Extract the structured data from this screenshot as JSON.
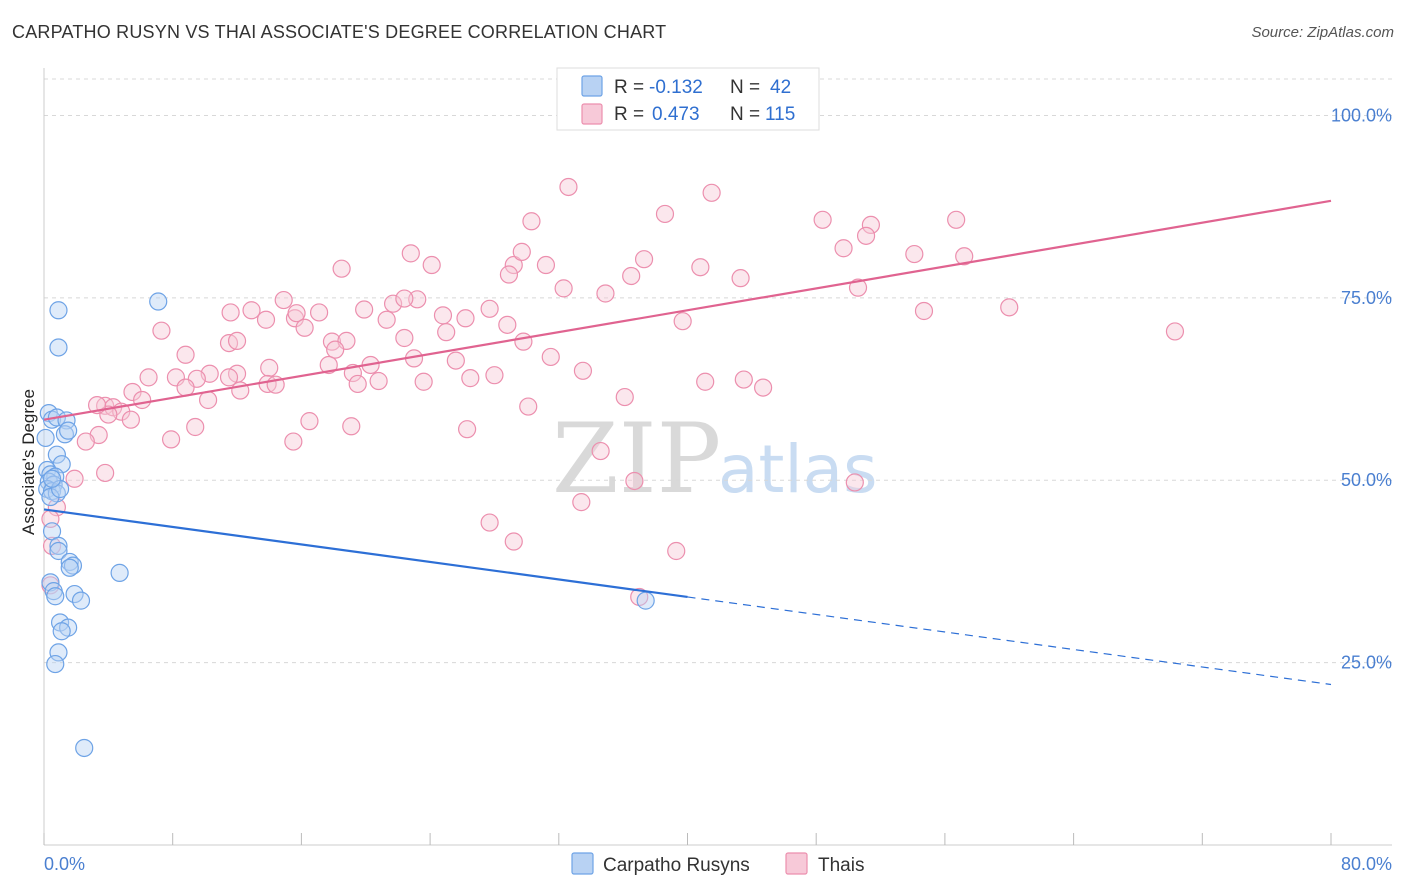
{
  "title": "CARPATHO RUSYN VS THAI ASSOCIATE'S DEGREE CORRELATION CHART",
  "source": "Source: ZipAtlas.com",
  "watermark": {
    "zip": "ZIP",
    "atlas": "atlas"
  },
  "colors": {
    "blue": "#6ea3e6",
    "blue_fill": "#b8d2f3",
    "blue_line": "#2d6fd6",
    "pink": "#ec8fae",
    "pink_fill": "#f7c9d8",
    "pink_line": "#e06390",
    "grid": "#d8d8d8",
    "axis_label": "#4a7fd0"
  },
  "legend": {
    "r_label": "R =",
    "n_label": "N =",
    "rows": [
      {
        "series": "Carpatho Rusyns",
        "r": "-0.132",
        "n": "42",
        "color": "blue"
      },
      {
        "series": "Thais",
        "r": "0.473",
        "n": "115",
        "color": "pink"
      }
    ]
  },
  "chart_data": {
    "type": "scatter",
    "title": "CARPATHO RUSYN VS THAI ASSOCIATE'S DEGREE CORRELATION CHART",
    "xlabel": "",
    "ylabel": "Associate's Degree",
    "xlim": [
      0,
      80
    ],
    "ylim": [
      0,
      105
    ],
    "x_tick_labels": {
      "min": "0.0%",
      "max": "80.0%"
    },
    "y_ticks": [
      {
        "value": 100,
        "label": "100.0%"
      },
      {
        "value": 75,
        "label": "75.0%"
      },
      {
        "value": 50,
        "label": "50.0%"
      },
      {
        "value": 25,
        "label": "25.0%"
      }
    ],
    "series": [
      {
        "name": "Carpatho Rusyns",
        "color": "blue",
        "trend": {
          "x0": 0,
          "y0": 46,
          "x1": 40,
          "y1": 34,
          "dash_to_x": 80,
          "dash_to_y": 22
        },
        "points": [
          [
            0.1,
            55.8
          ],
          [
            0.3,
            59.2
          ],
          [
            0.5,
            58.3
          ],
          [
            0.8,
            58.6
          ],
          [
            1.4,
            58.2
          ],
          [
            1.3,
            56.3
          ],
          [
            1.5,
            56.8
          ],
          [
            0.8,
            53.5
          ],
          [
            1.1,
            52.2
          ],
          [
            0.2,
            51.4
          ],
          [
            0.4,
            50.8
          ],
          [
            0.7,
            50.5
          ],
          [
            0.3,
            49.8
          ],
          [
            0.6,
            49.4
          ],
          [
            0.2,
            48.8
          ],
          [
            0.5,
            48.5
          ],
          [
            0.8,
            48.2
          ],
          [
            0.4,
            47.7
          ],
          [
            1.0,
            48.8
          ],
          [
            0.5,
            43.0
          ],
          [
            0.9,
            41.0
          ],
          [
            0.9,
            40.3
          ],
          [
            1.6,
            38.8
          ],
          [
            1.8,
            38.3
          ],
          [
            1.6,
            38.0
          ],
          [
            0.4,
            36.0
          ],
          [
            0.6,
            34.8
          ],
          [
            0.7,
            34.1
          ],
          [
            1.9,
            34.4
          ],
          [
            2.3,
            33.5
          ],
          [
            1.0,
            30.5
          ],
          [
            1.5,
            29.8
          ],
          [
            1.1,
            29.3
          ],
          [
            0.9,
            26.4
          ],
          [
            0.7,
            24.8
          ],
          [
            4.7,
            37.3
          ],
          [
            2.5,
            13.3
          ],
          [
            0.9,
            73.3
          ],
          [
            0.9,
            68.2
          ],
          [
            7.1,
            74.5
          ],
          [
            37.4,
            33.5
          ],
          [
            0.5,
            50.2
          ]
        ]
      },
      {
        "name": "Thais",
        "color": "pink",
        "trend": {
          "x0": 0,
          "y0": 58.3,
          "x1": 80,
          "y1": 88.3
        },
        "points": [
          [
            32.6,
            90.2
          ],
          [
            41.5,
            89.4
          ],
          [
            30.3,
            85.5
          ],
          [
            38.6,
            86.5
          ],
          [
            48.4,
            85.7
          ],
          [
            51.4,
            85.0
          ],
          [
            51.1,
            83.5
          ],
          [
            54.1,
            81.0
          ],
          [
            22.8,
            81.1
          ],
          [
            49.7,
            81.8
          ],
          [
            29.2,
            79.5
          ],
          [
            37.3,
            80.3
          ],
          [
            31.2,
            79.5
          ],
          [
            29.7,
            81.3
          ],
          [
            24.1,
            79.5
          ],
          [
            18.5,
            79.0
          ],
          [
            36.5,
            78.0
          ],
          [
            32.3,
            76.3
          ],
          [
            34.9,
            75.6
          ],
          [
            43.3,
            77.7
          ],
          [
            40.8,
            79.2
          ],
          [
            28.9,
            78.2
          ],
          [
            50.6,
            76.4
          ],
          [
            23.2,
            74.8
          ],
          [
            21.7,
            74.2
          ],
          [
            22.4,
            74.9
          ],
          [
            14.9,
            74.7
          ],
          [
            12.9,
            73.3
          ],
          [
            11.6,
            73.0
          ],
          [
            17.1,
            73.0
          ],
          [
            19.9,
            73.4
          ],
          [
            24.8,
            72.6
          ],
          [
            27.7,
            73.5
          ],
          [
            21.3,
            72.0
          ],
          [
            26.2,
            72.2
          ],
          [
            13.8,
            72.0
          ],
          [
            15.6,
            72.2
          ],
          [
            15.7,
            72.9
          ],
          [
            16.2,
            70.9
          ],
          [
            28.8,
            71.3
          ],
          [
            54.7,
            73.2
          ],
          [
            39.7,
            71.8
          ],
          [
            7.3,
            70.5
          ],
          [
            11.5,
            68.8
          ],
          [
            12.0,
            69.1
          ],
          [
            17.9,
            69.0
          ],
          [
            18.8,
            69.1
          ],
          [
            22.4,
            69.5
          ],
          [
            25.0,
            70.3
          ],
          [
            29.8,
            69.0
          ],
          [
            18.1,
            67.9
          ],
          [
            8.8,
            67.2
          ],
          [
            23.0,
            66.7
          ],
          [
            25.6,
            66.4
          ],
          [
            31.5,
            66.9
          ],
          [
            17.7,
            65.8
          ],
          [
            20.3,
            65.8
          ],
          [
            14.0,
            65.4
          ],
          [
            19.2,
            64.7
          ],
          [
            10.3,
            64.6
          ],
          [
            12.0,
            64.6
          ],
          [
            26.5,
            64.0
          ],
          [
            28.0,
            64.4
          ],
          [
            33.5,
            65.0
          ],
          [
            6.5,
            64.1
          ],
          [
            8.2,
            64.1
          ],
          [
            9.5,
            63.9
          ],
          [
            11.5,
            64.1
          ],
          [
            13.9,
            63.2
          ],
          [
            14.4,
            63.1
          ],
          [
            19.5,
            63.2
          ],
          [
            20.8,
            63.6
          ],
          [
            23.6,
            63.5
          ],
          [
            8.8,
            62.7
          ],
          [
            5.5,
            62.1
          ],
          [
            12.2,
            62.3
          ],
          [
            10.2,
            61.0
          ],
          [
            3.8,
            60.2
          ],
          [
            4.3,
            60.0
          ],
          [
            4.8,
            59.4
          ],
          [
            5.4,
            58.3
          ],
          [
            6.1,
            61.0
          ],
          [
            4.0,
            59.0
          ],
          [
            36.1,
            61.4
          ],
          [
            44.7,
            62.7
          ],
          [
            30.1,
            60.1
          ],
          [
            3.3,
            60.3
          ],
          [
            16.5,
            58.1
          ],
          [
            19.1,
            57.4
          ],
          [
            9.4,
            57.3
          ],
          [
            26.3,
            57.0
          ],
          [
            7.9,
            55.6
          ],
          [
            3.4,
            56.2
          ],
          [
            2.6,
            55.3
          ],
          [
            15.5,
            55.3
          ],
          [
            34.6,
            54.0
          ],
          [
            3.8,
            51.0
          ],
          [
            1.9,
            50.2
          ],
          [
            0.8,
            46.3
          ],
          [
            0.4,
            44.7
          ],
          [
            0.5,
            41.0
          ],
          [
            0.4,
            35.6
          ],
          [
            36.7,
            49.9
          ],
          [
            50.4,
            49.7
          ],
          [
            27.7,
            44.2
          ],
          [
            33.4,
            47.0
          ],
          [
            29.2,
            41.6
          ],
          [
            39.3,
            40.3
          ],
          [
            37.0,
            34.0
          ],
          [
            70.3,
            70.4
          ],
          [
            60.0,
            73.7
          ],
          [
            56.7,
            85.7
          ],
          [
            57.2,
            80.7
          ],
          [
            41.1,
            63.5
          ],
          [
            43.5,
            63.8
          ]
        ]
      }
    ],
    "bottom_legend": [
      "Carpatho Rusyns",
      "Thais"
    ]
  }
}
